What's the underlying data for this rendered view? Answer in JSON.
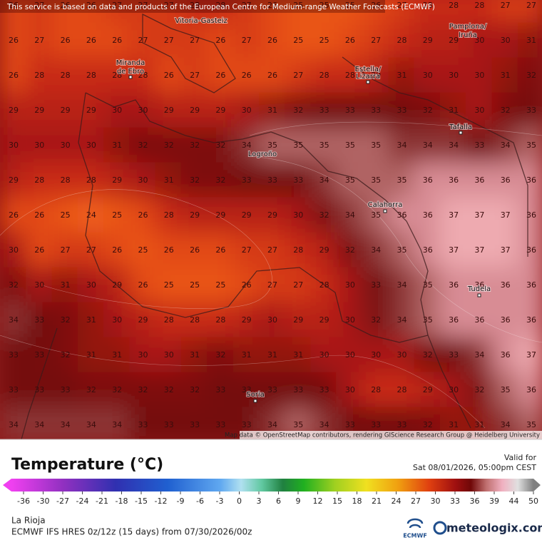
{
  "header": {
    "attribution": "This service is based on data and products of the European Centre for Medium-range Weather Forecasts (ECMWF)"
  },
  "map": {
    "grid": [
      [
        26,
        27,
        26,
        26,
        27,
        27,
        27,
        28,
        28,
        27,
        26,
        25,
        25,
        25,
        26,
        27,
        28,
        28,
        28,
        27,
        27
      ],
      [
        26,
        27,
        26,
        26,
        26,
        27,
        27,
        27,
        26,
        27,
        26,
        25,
        25,
        26,
        27,
        28,
        29,
        29,
        30,
        30,
        31
      ],
      [
        26,
        28,
        28,
        28,
        28,
        28,
        26,
        27,
        26,
        26,
        26,
        27,
        28,
        28,
        29,
        31,
        30,
        30,
        30,
        31,
        32
      ],
      [
        29,
        29,
        29,
        29,
        30,
        30,
        29,
        29,
        29,
        30,
        31,
        32,
        33,
        33,
        33,
        33,
        32,
        31,
        30,
        32,
        33
      ],
      [
        30,
        30,
        30,
        30,
        31,
        32,
        32,
        32,
        32,
        34,
        35,
        35,
        35,
        35,
        35,
        34,
        34,
        34,
        33,
        34,
        35
      ],
      [
        29,
        28,
        28,
        28,
        29,
        30,
        31,
        32,
        32,
        33,
        33,
        33,
        34,
        35,
        35,
        35,
        36,
        36,
        36,
        36,
        36
      ],
      [
        26,
        26,
        25,
        24,
        25,
        26,
        28,
        29,
        29,
        29,
        29,
        30,
        32,
        34,
        35,
        36,
        36,
        37,
        37,
        37,
        36
      ],
      [
        30,
        26,
        27,
        27,
        26,
        25,
        26,
        26,
        26,
        27,
        27,
        28,
        29,
        32,
        34,
        35,
        36,
        37,
        37,
        37,
        36
      ],
      [
        32,
        30,
        31,
        30,
        29,
        26,
        25,
        25,
        25,
        26,
        27,
        27,
        28,
        30,
        33,
        34,
        35,
        36,
        36,
        36,
        36
      ],
      [
        34,
        33,
        32,
        31,
        30,
        29,
        28,
        28,
        28,
        29,
        30,
        29,
        29,
        30,
        32,
        34,
        35,
        36,
        36,
        36,
        36
      ],
      [
        33,
        33,
        32,
        31,
        31,
        30,
        30,
        31,
        32,
        31,
        31,
        31,
        30,
        30,
        30,
        30,
        32,
        33,
        34,
        36,
        37
      ],
      [
        33,
        33,
        33,
        32,
        32,
        32,
        32,
        32,
        33,
        33,
        33,
        33,
        33,
        30,
        28,
        28,
        29,
        30,
        32,
        35,
        36
      ],
      [
        34,
        34,
        34,
        34,
        34,
        33,
        33,
        33,
        33,
        33,
        34,
        35,
        34,
        33,
        33,
        33,
        32,
        31,
        31,
        34,
        35
      ]
    ],
    "cities": [
      "Vitoria-Gasteiz",
      "Pamplona/",
      "Iruña",
      "Miranda",
      "de Ebro",
      "Estella/",
      "Lizarra",
      "Tafalla",
      "Logroño",
      "Calahorra",
      "Tudela",
      "Soria"
    ],
    "credits": "Map data © OpenStreetMap contributors, rendering GIScience Research Group @ Heidelberg University"
  },
  "legend": {
    "title": "Temperature (°C)",
    "ticks": [
      -36,
      -30,
      -27,
      -24,
      -21,
      -18,
      -15,
      -12,
      -9,
      -6,
      -3,
      0,
      3,
      6,
      9,
      12,
      15,
      18,
      21,
      24,
      27,
      30,
      33,
      36,
      39,
      44,
      50
    ]
  },
  "footer": {
    "valid_label": "Valid for",
    "valid_time": "Sat 08/01/2026, 05:00pm CEST",
    "region": "La Rioja",
    "model": "ECMWF IFS HRES 0z/12z (15 days) from 07/30/2026/00z",
    "ecmwf_logo": "ECMWF",
    "brand": "meteologix.com"
  }
}
